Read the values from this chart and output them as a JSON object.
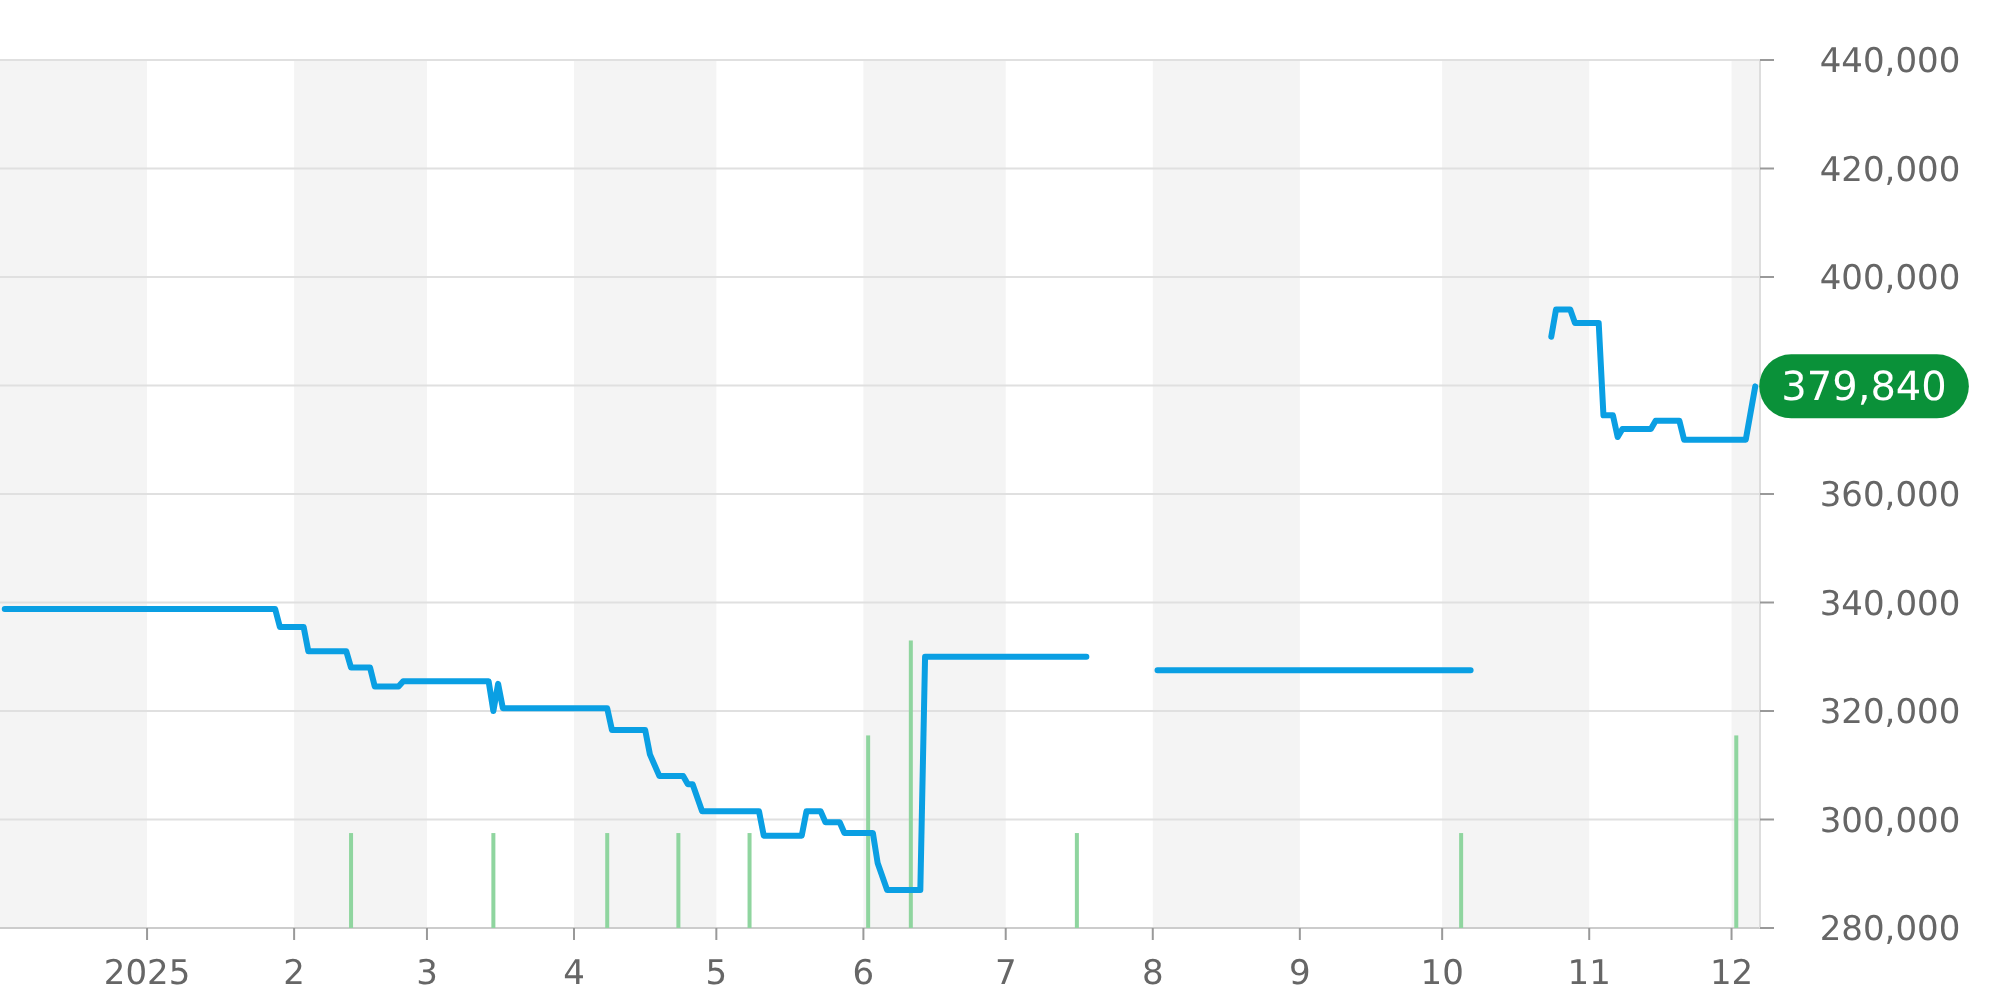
{
  "chart_data": {
    "type": "line",
    "xlim": [
      "2024-12-01",
      "2025-12-07"
    ],
    "ylim": [
      280000,
      440000
    ],
    "xticks": [
      {
        "value": "2025-01-01",
        "label": "2025"
      },
      {
        "value": "2025-02-01",
        "label": "2"
      },
      {
        "value": "2025-03-01",
        "label": "3"
      },
      {
        "value": "2025-04-01",
        "label": "4"
      },
      {
        "value": "2025-05-01",
        "label": "5"
      },
      {
        "value": "2025-06-01",
        "label": "6"
      },
      {
        "value": "2025-07-01",
        "label": "7"
      },
      {
        "value": "2025-08-01",
        "label": "8"
      },
      {
        "value": "2025-09-01",
        "label": "9"
      },
      {
        "value": "2025-10-01",
        "label": "10"
      },
      {
        "value": "2025-11-01",
        "label": "11"
      },
      {
        "value": "2025-12-01",
        "label": "12"
      }
    ],
    "yticks": [
      {
        "value": 280000,
        "label": "280,000"
      },
      {
        "value": 300000,
        "label": "300,000"
      },
      {
        "value": 320000,
        "label": "320,000"
      },
      {
        "value": 340000,
        "label": "340,000"
      },
      {
        "value": 360000,
        "label": "360,000"
      },
      {
        "value": 380000,
        "label": null
      },
      {
        "value": 400000,
        "label": "400,000"
      },
      {
        "value": 420000,
        "label": "420,000"
      },
      {
        "value": 440000,
        "label": "440,000"
      }
    ],
    "grid": "y",
    "bands": [
      {
        "axis": "x",
        "from": "2024-12-01",
        "to": "2025-01-01",
        "color": "#f4f4f4"
      },
      {
        "axis": "x",
        "from": "2025-02-01",
        "to": "2025-03-01",
        "color": "#f4f4f4"
      },
      {
        "axis": "x",
        "from": "2025-04-01",
        "to": "2025-05-01",
        "color": "#f4f4f4"
      },
      {
        "axis": "x",
        "from": "2025-06-01",
        "to": "2025-07-01",
        "color": "#f4f4f4"
      },
      {
        "axis": "x",
        "from": "2025-08-01",
        "to": "2025-09-01",
        "color": "#f4f4f4"
      },
      {
        "axis": "x",
        "from": "2025-10-01",
        "to": "2025-11-01",
        "color": "#f4f4f4"
      },
      {
        "axis": "x",
        "from": "2025-12-01",
        "to": "2025-12-07",
        "color": "#f4f4f4"
      }
    ],
    "series": [
      {
        "type": "bar",
        "color": "#8fd59f",
        "x": [
          "2025-02-13",
          "2025-03-15",
          "2025-04-08",
          "2025-04-23",
          "2025-05-08",
          "2025-06-02",
          "2025-06-11",
          "2025-07-16",
          "2025-10-05",
          "2025-12-02"
        ],
        "values": [
          297500,
          297500,
          297500,
          297500,
          297500,
          315500,
          333000,
          297500,
          297500,
          315500
        ]
      },
      {
        "color": "#0a9fe3",
        "x": [
          "2024-12-02",
          "2025-01-28",
          "2025-01-29",
          "2025-02-03",
          "2025-02-04",
          "2025-02-12",
          "2025-02-13",
          "2025-02-17",
          "2025-02-18",
          "2025-02-23",
          "2025-02-24",
          "2025-03-14",
          "2025-03-15",
          "2025-03-16",
          "2025-03-17",
          "2025-04-08",
          "2025-04-09",
          "2025-04-16",
          "2025-04-17",
          "2025-04-19",
          "2025-04-24",
          "2025-04-25",
          "2025-04-26",
          "2025-04-28",
          "2025-05-10",
          "2025-05-11",
          "2025-05-19",
          "2025-05-20",
          "2025-05-23",
          "2025-05-24",
          "2025-05-27",
          "2025-05-28",
          "2025-06-03",
          "2025-06-04",
          "2025-06-06",
          "2025-06-13",
          "2025-06-14",
          "2025-07-18",
          "2025-07-30",
          "2025-08-02",
          "2025-10-07",
          "2025-10-15",
          "2025-10-24",
          "2025-10-25",
          "2025-10-28",
          "2025-10-29",
          "2025-11-03",
          "2025-11-04",
          "2025-11-06",
          "2025-11-07",
          "2025-11-08",
          "2025-11-14",
          "2025-11-15",
          "2025-11-20",
          "2025-11-21",
          "2025-12-04",
          "2025-12-06"
        ],
        "values": [
          338800,
          338800,
          335500,
          335500,
          331000,
          331000,
          328000,
          328000,
          324500,
          324500,
          325500,
          325500,
          320000,
          325000,
          320500,
          320500,
          316500,
          316500,
          312000,
          308000,
          308000,
          306500,
          306500,
          301500,
          301500,
          297000,
          297000,
          301500,
          301500,
          299500,
          299500,
          297500,
          297500,
          292000,
          287000,
          287000,
          330000,
          330000,
          null,
          327500,
          327500,
          null,
          389000,
          394000,
          394000,
          391500,
          391500,
          374500,
          374500,
          370500,
          372000,
          372000,
          373500,
          373500,
          370000,
          370000,
          379840
        ]
      }
    ],
    "annotations": [
      {
        "text": "379,840",
        "x": "2025-12-06",
        "y": 379840
      }
    ]
  }
}
